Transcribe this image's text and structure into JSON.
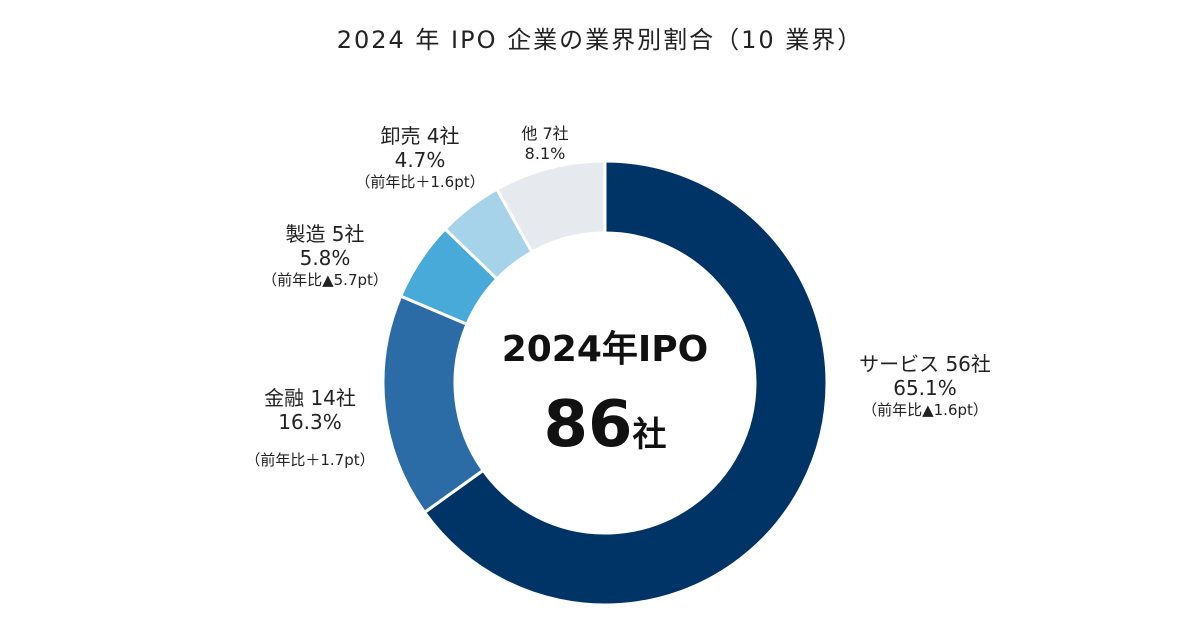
{
  "chart_data": {
    "type": "pie",
    "donut": true,
    "title": "2024 年 IPO 企業の業界別割合（10 業界）",
    "center": {
      "title": "2024年IPO",
      "count": "86",
      "unit": "社"
    },
    "slices": [
      {
        "name": "サービス 56社",
        "value": 65.1,
        "label": "65.1%",
        "change": "（前年比▲1.6pt）",
        "color": "#003366"
      },
      {
        "name": "金融 14社",
        "value": 16.3,
        "label": "16.3%",
        "change": "（前年比＋1.7pt）",
        "color": "#2b6ca7"
      },
      {
        "name": "製造 5社",
        "value": 5.8,
        "label": "5.8%",
        "change": "（前年比▲5.7pt）",
        "color": "#47aad9"
      },
      {
        "name": "卸売 4社",
        "value": 4.7,
        "label": "4.7%",
        "change": "（前年比＋1.6pt）",
        "color": "#a6d3ea"
      },
      {
        "name": "他 7社",
        "value": 8.1,
        "label": "8.1%",
        "change": "",
        "color": "#e6eaee"
      }
    ]
  }
}
